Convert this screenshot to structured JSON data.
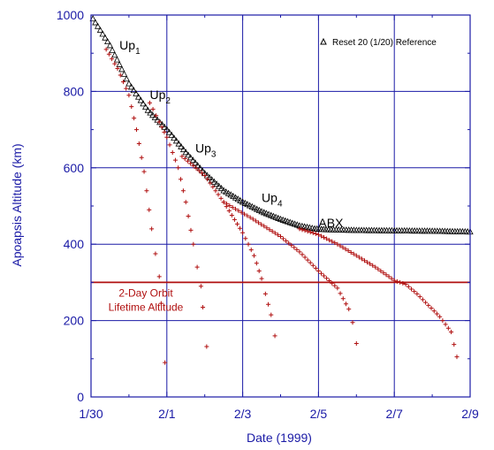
{
  "chart_data": {
    "type": "scatter",
    "title": "",
    "xlabel": "Date (1999)",
    "ylabel": "Apoapsis Altitude (km)",
    "x_ticks": [
      "1/30",
      "2/1",
      "2/3",
      "2/5",
      "2/7",
      "2/9"
    ],
    "x_tick_days": [
      0,
      2,
      4,
      6,
      8,
      10
    ],
    "xlim_days": [
      0,
      10
    ],
    "ylim": [
      0,
      1000
    ],
    "y_ticks": [
      0,
      200,
      400,
      600,
      800,
      1000
    ],
    "grid": true,
    "legend": {
      "position": "top-right",
      "label": "Reset 20 (1/20) Reference"
    },
    "reference_line": {
      "y": 300,
      "label_lines": [
        "2-Day Orbit",
        "Lifetime Altitude"
      ]
    },
    "annotations": [
      {
        "base": "Up",
        "sub": "1",
        "x": 0.75,
        "y": 910
      },
      {
        "base": "Up",
        "sub": "2",
        "x": 1.55,
        "y": 780
      },
      {
        "base": "Up",
        "sub": "3",
        "x": 2.75,
        "y": 640
      },
      {
        "base": "Up",
        "sub": "4",
        "x": 4.5,
        "y": 510
      },
      {
        "base": "ABX",
        "sub": "",
        "x": 6.0,
        "y": 445
      }
    ],
    "series": [
      {
        "marker": "triangle",
        "color": "#000000",
        "points": [
          [
            0.05,
            990
          ],
          [
            0.5,
            920
          ],
          [
            1.0,
            820
          ],
          [
            1.5,
            750
          ],
          [
            2.0,
            700
          ],
          [
            2.5,
            640
          ],
          [
            3.0,
            585
          ],
          [
            3.5,
            540
          ],
          [
            4.0,
            510
          ],
          [
            4.5,
            485
          ],
          [
            5.0,
            465
          ],
          [
            5.5,
            448
          ],
          [
            5.9,
            440
          ],
          [
            6.2,
            438
          ],
          [
            7.0,
            436
          ],
          [
            8.0,
            435
          ],
          [
            9.0,
            434
          ],
          [
            10.0,
            432
          ]
        ]
      },
      {
        "marker": "plus",
        "color": "#b01010",
        "points": [
          [
            0.4,
            910
          ],
          [
            0.7,
            860
          ],
          [
            1.0,
            790
          ],
          [
            1.2,
            700
          ],
          [
            1.4,
            590
          ],
          [
            1.6,
            440
          ],
          [
            1.7,
            375
          ],
          [
            1.8,
            315
          ],
          [
            1.85,
            245
          ],
          [
            1.95,
            90
          ]
        ]
      },
      {
        "marker": "plus",
        "color": "#b01010",
        "points": [
          [
            1.55,
            770
          ],
          [
            1.8,
            720
          ],
          [
            2.0,
            680
          ],
          [
            2.3,
            600
          ],
          [
            2.5,
            510
          ],
          [
            2.7,
            400
          ],
          [
            2.8,
            340
          ],
          [
            2.9,
            290
          ],
          [
            2.95,
            235
          ],
          [
            3.05,
            132
          ]
        ]
      },
      {
        "marker": "plus",
        "color": "#b01010",
        "points": [
          [
            2.4,
            630
          ],
          [
            3.0,
            580
          ],
          [
            3.5,
            510
          ],
          [
            4.0,
            430
          ],
          [
            4.3,
            370
          ],
          [
            4.5,
            310
          ],
          [
            4.6,
            270
          ],
          [
            4.75,
            215
          ],
          [
            4.85,
            160
          ]
        ]
      },
      {
        "marker": "plus",
        "color": "#b01010",
        "points": [
          [
            3.5,
            510
          ],
          [
            4.2,
            470
          ],
          [
            5.0,
            420
          ],
          [
            5.5,
            380
          ],
          [
            6.0,
            330
          ],
          [
            6.5,
            285
          ],
          [
            6.8,
            230
          ],
          [
            6.9,
            195
          ],
          [
            7.0,
            140
          ]
        ]
      },
      {
        "marker": "plus",
        "color": "#b01010",
        "points": [
          [
            5.5,
            440
          ],
          [
            6.0,
            425
          ],
          [
            6.5,
            400
          ],
          [
            7.0,
            370
          ],
          [
            7.5,
            340
          ],
          [
            8.0,
            305
          ],
          [
            8.3,
            295
          ],
          [
            8.6,
            270
          ],
          [
            8.9,
            240
          ],
          [
            9.2,
            210
          ],
          [
            9.5,
            170
          ],
          [
            9.65,
            105
          ]
        ]
      }
    ]
  }
}
